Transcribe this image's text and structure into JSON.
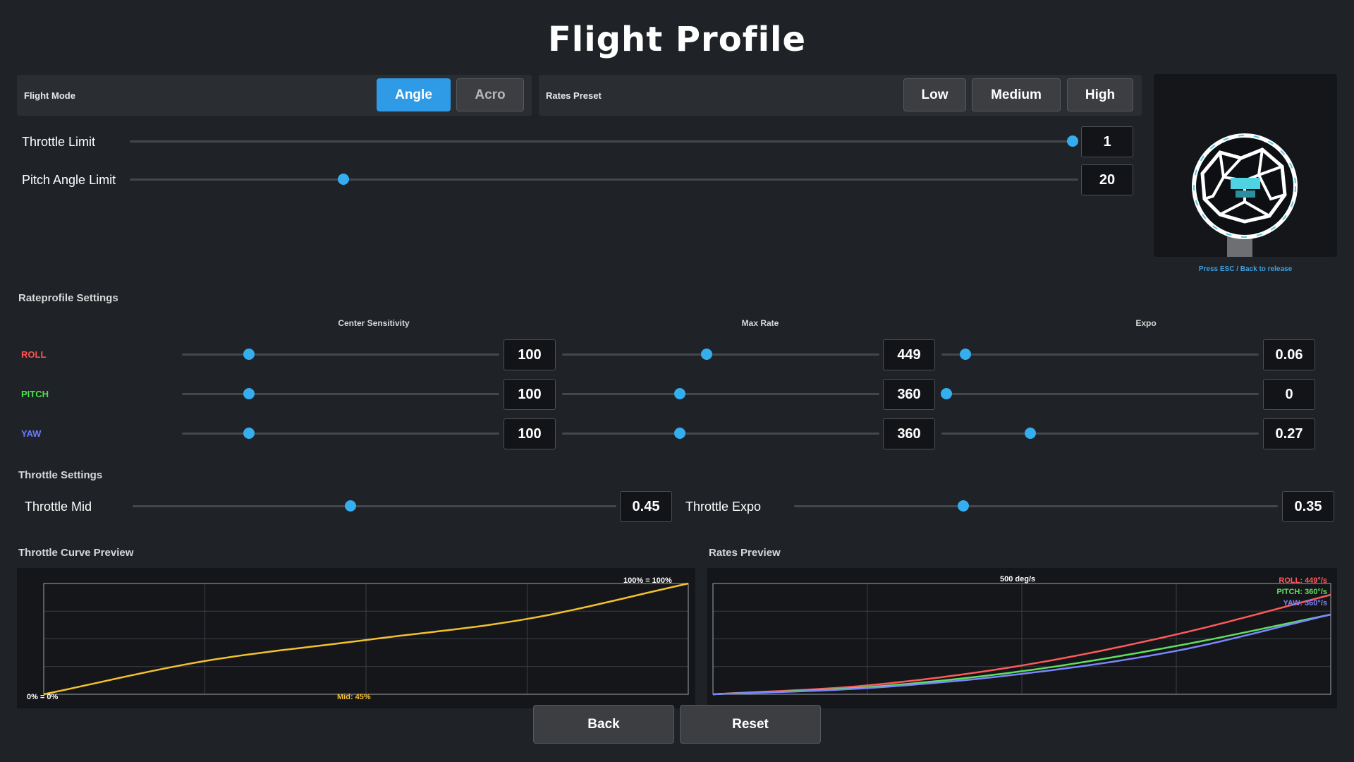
{
  "title": "Flight Profile",
  "flight_mode": {
    "label": "Flight Mode",
    "options": [
      "Angle",
      "Acro"
    ],
    "selected": "Angle"
  },
  "rates_preset": {
    "label": "Rates Preset",
    "options": [
      "Low",
      "Medium",
      "High"
    ]
  },
  "throttle_limit": {
    "label": "Throttle Limit",
    "value": "1",
    "position": 1.0
  },
  "pitch_angle_limit": {
    "label": "Pitch Angle Limit",
    "value": "20",
    "position": 0.225
  },
  "preview_hint": "Press ESC / Back to release",
  "rateprofile": {
    "title": "Rateprofile Settings",
    "columns": [
      "Center Sensitivity",
      "Max Rate",
      "Expo"
    ],
    "rows": [
      {
        "name": "ROLL",
        "color": "#ff5252",
        "values": [
          "100",
          "449",
          "0.06"
        ],
        "positions": [
          0.21,
          0.455,
          0.075
        ]
      },
      {
        "name": "PITCH",
        "color": "#4ee04e",
        "values": [
          "100",
          "360",
          "0"
        ],
        "positions": [
          0.21,
          0.37,
          0.015
        ]
      },
      {
        "name": "YAW",
        "color": "#6a7cff",
        "values": [
          "100",
          "360",
          "0.27"
        ],
        "positions": [
          0.21,
          0.37,
          0.28
        ]
      }
    ]
  },
  "throttle_settings": {
    "title": "Throttle Settings",
    "mid": {
      "label": "Throttle Mid",
      "value": "0.45",
      "position": 0.45
    },
    "expo": {
      "label": "Throttle Expo",
      "value": "0.35",
      "position": 0.35
    }
  },
  "throttle_curve": {
    "title": "Throttle Curve Preview",
    "top_label": "100% = 100%",
    "bottom_label": "0% = 0%",
    "mid_label": "Mid: 45%",
    "curve_color": "#f2c12e"
  },
  "rates_preview": {
    "title": "Rates Preview",
    "top_label": "500 deg/s",
    "legend": [
      {
        "text": "ROLL: 449°/s",
        "color": "#ff5a5a"
      },
      {
        "text": "PITCH: 360°/s",
        "color": "#5ee05e"
      },
      {
        "text": "YAW: 360°/s",
        "color": "#7a86ff"
      }
    ]
  },
  "buttons": {
    "back": "Back",
    "reset": "Reset"
  },
  "chart_data": [
    {
      "type": "line",
      "title": "Throttle Curve Preview",
      "x": [
        0,
        0.25,
        0.5,
        0.75,
        1.0
      ],
      "series": [
        {
          "values": [
            0,
            0.3,
            0.49,
            0.68,
            1.0
          ]
        }
      ],
      "xlim": [
        0,
        1
      ],
      "ylim": [
        0,
        1
      ],
      "grid": true
    },
    {
      "type": "line",
      "title": "Rates Preview",
      "x": [
        0,
        0.25,
        0.5,
        0.75,
        1.0
      ],
      "series": [
        {
          "name": "ROLL: 449°/s",
          "values": [
            0,
            40,
            130,
            270,
            449
          ]
        },
        {
          "name": "PITCH: 360°/s",
          "values": [
            0,
            32,
            104,
            218,
            360
          ]
        },
        {
          "name": "YAW: 360°/s",
          "values": [
            0,
            28,
            92,
            196,
            360
          ]
        }
      ],
      "xlim": [
        0,
        1
      ],
      "ylim": [
        0,
        500
      ],
      "grid": true
    }
  ]
}
